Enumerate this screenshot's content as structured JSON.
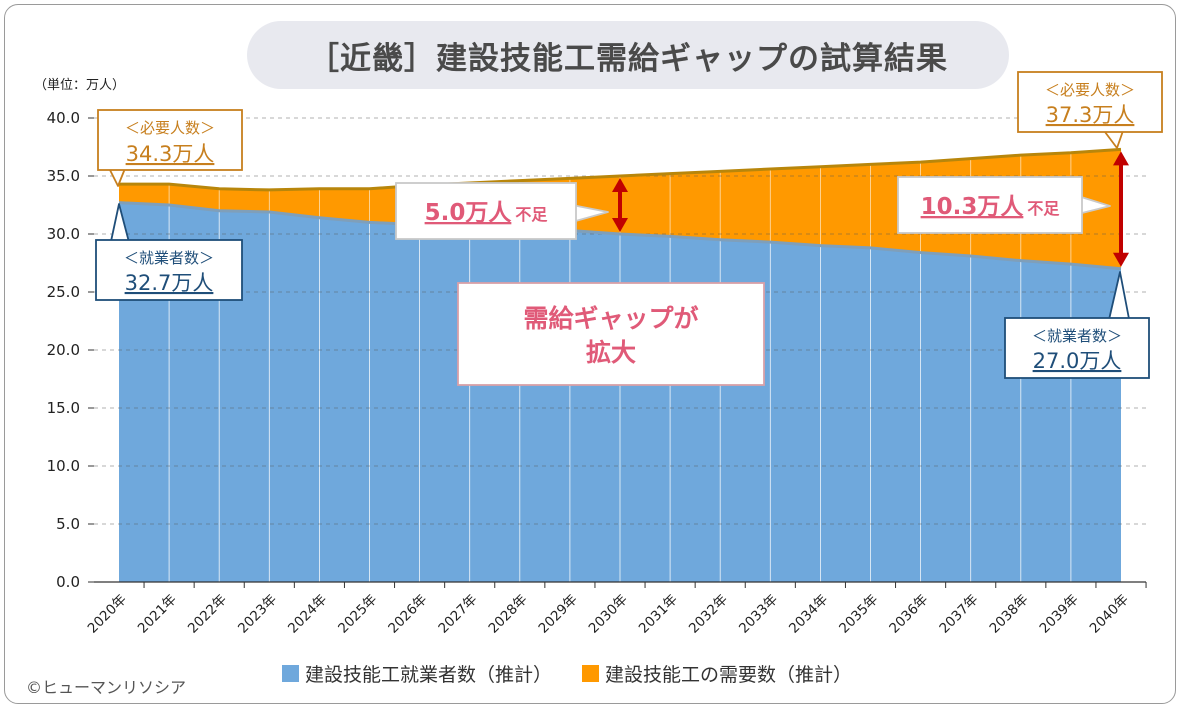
{
  "title": "［近畿］建設技能工需給ギャップの試算結果",
  "unit_label": "（単位：万人）",
  "copyright": "©ヒューマンリソシア",
  "colors": {
    "workers": "#6fa8dc",
    "workers_line": "#7f9fba",
    "demand": "#ff9900",
    "demand_line": "#b8860b",
    "arrow": "#c00000",
    "demand_callout_text": "#c77f1e",
    "workers_callout_text": "#1f4e79",
    "gap_text": "#e05a78"
  },
  "chart_data": {
    "type": "area",
    "x": [
      "2020年",
      "2021年",
      "2022年",
      "2023年",
      "2024年",
      "2025年",
      "2026年",
      "2027年",
      "2028年",
      "2029年",
      "2030年",
      "2031年",
      "2032年",
      "2033年",
      "2034年",
      "2035年",
      "2036年",
      "2037年",
      "2038年",
      "2039年",
      "2040年"
    ],
    "series": [
      {
        "name": "建設技能工就業者数（推計）",
        "values": [
          32.7,
          32.5,
          32.0,
          31.9,
          31.4,
          31.0,
          30.8,
          30.7,
          30.5,
          30.3,
          30.0,
          29.8,
          29.5,
          29.3,
          29.0,
          28.8,
          28.4,
          28.1,
          27.7,
          27.4,
          27.0
        ]
      },
      {
        "name": "建設技能工の需要数（推計）",
        "values": [
          34.3,
          34.3,
          33.9,
          33.8,
          33.9,
          33.9,
          34.2,
          34.4,
          34.6,
          34.8,
          35.0,
          35.2,
          35.4,
          35.6,
          35.8,
          36.0,
          36.2,
          36.5,
          36.8,
          37.0,
          37.3
        ]
      }
    ],
    "ylim": [
      0,
      40
    ],
    "yticks": [
      "0.0",
      "5.0",
      "10.0",
      "15.0",
      "20.0",
      "25.0",
      "30.0",
      "35.0",
      "40.0"
    ],
    "grid": true,
    "legend_position": "bottom"
  },
  "callouts": {
    "demand_2020": {
      "label": "＜必要人数＞",
      "value": "34.3万人"
    },
    "demand_2040": {
      "label": "＜必要人数＞",
      "value": "37.3万人"
    },
    "workers_2020": {
      "label": "＜就業者数＞",
      "value": "32.7万人"
    },
    "workers_2040": {
      "label": "＜就業者数＞",
      "value": "27.0万人"
    },
    "gap_2030": {
      "value": "5.0万人",
      "suffix": "不足"
    },
    "gap_2040": {
      "value": "10.3万人",
      "suffix": "不足"
    },
    "center_line1": "需給ギャップが",
    "center_line2": "拡大"
  }
}
